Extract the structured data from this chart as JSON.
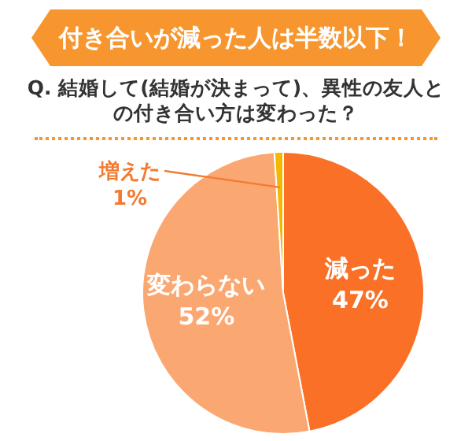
{
  "chart_data": {
    "type": "pie",
    "title": "付き合いが減った人は半数以下！",
    "subtitle": "Q. 結婚して(結婚が決まって)、異性の友人との付き合い方は変わった？",
    "categories": [
      "減った",
      "変わらない",
      "増えた"
    ],
    "values": [
      47,
      52,
      1
    ],
    "colors": [
      "#f97026",
      "#fba772",
      "#f5b800"
    ],
    "value_labels": [
      "47%",
      "52%",
      "1%"
    ],
    "legend": false
  }
}
